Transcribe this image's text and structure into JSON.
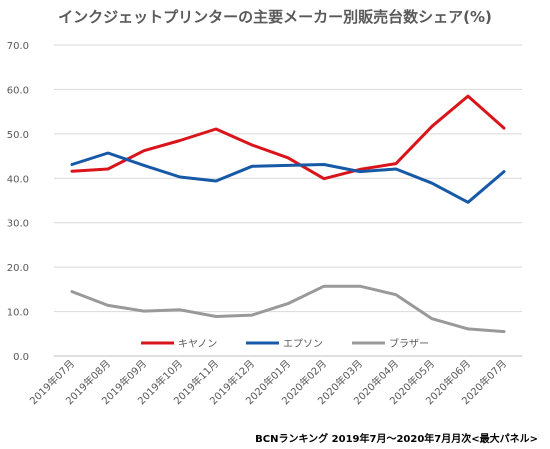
{
  "chart_data": {
    "type": "line",
    "title": "インクジェットプリンターの主要メーカー別販売台数シェア(%)",
    "source": "BCNランキング 2019年7月～2020年7月月次<最大パネル>",
    "x": [
      "2019年07月",
      "2019年08月",
      "2019年09月",
      "2019年10月",
      "2019年11月",
      "2019年12月",
      "2020年01月",
      "2020年02月",
      "2020年03月",
      "2020年04月",
      "2020年05月",
      "2020年06月",
      "2020年07月"
    ],
    "yticks": [
      "0.0",
      "10.0",
      "20.0",
      "30.0",
      "40.0",
      "50.0",
      "60.0",
      "70.0"
    ],
    "ylim": [
      0,
      70
    ],
    "grid": true,
    "legend_position": "bottom-inside",
    "series": [
      {
        "name": "キヤノン",
        "color": "#d9141b",
        "values": [
          41.6,
          42.1,
          46.2,
          48.5,
          51.1,
          47.5,
          44.6,
          39.9,
          42.0,
          43.3,
          51.7,
          58.5,
          51.3
        ]
      },
      {
        "name": "エプソン",
        "color": "#1659a6",
        "values": [
          43.1,
          45.7,
          42.9,
          40.3,
          39.4,
          42.7,
          42.9,
          43.1,
          41.5,
          42.1,
          38.9,
          34.6,
          41.5
        ]
      },
      {
        "name": "ブラザー",
        "color": "#999999",
        "values": [
          14.5,
          11.4,
          10.1,
          10.4,
          8.9,
          9.2,
          11.8,
          15.7,
          15.7,
          13.8,
          8.4,
          6.1,
          5.5
        ]
      }
    ]
  }
}
